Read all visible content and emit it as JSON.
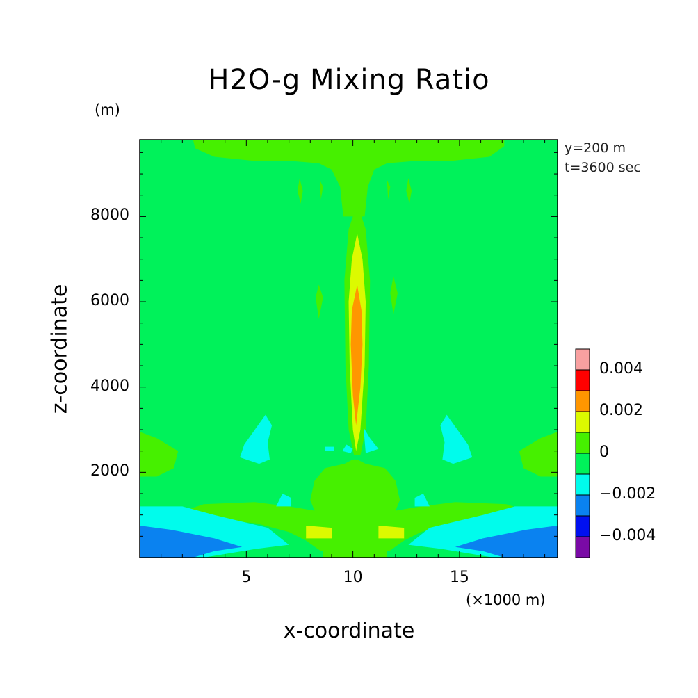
{
  "chart_data": {
    "type": "heatmap",
    "title": "H2O-g Mixing Ratio",
    "xlabel": "x-coordinate",
    "ylabel": "z-coordinate",
    "x_unit": "(×1000 m)",
    "z_unit": "(m)",
    "annotations": [
      "y=200 m",
      "t=3600 sec"
    ],
    "xlim": [
      0,
      19.6
    ],
    "ylim": [
      0,
      9800
    ],
    "x_ticks": [
      {
        "value": 5,
        "label": "5"
      },
      {
        "value": 10,
        "label": "10"
      },
      {
        "value": 15,
        "label": "15"
      }
    ],
    "y_ticks": [
      {
        "value": 2000,
        "label": "2000"
      },
      {
        "value": 4000,
        "label": "4000"
      },
      {
        "value": 6000,
        "label": "6000"
      },
      {
        "value": 8000,
        "label": "8000"
      }
    ],
    "colorbar": {
      "levels": [
        {
          "min": -0.005,
          "max": -0.004,
          "color": "#7a0aa6"
        },
        {
          "min": -0.004,
          "max": -0.003,
          "color": "#0010f0"
        },
        {
          "min": -0.003,
          "max": -0.002,
          "color": "#0a82f0"
        },
        {
          "min": -0.002,
          "max": -0.001,
          "color": "#00fcec"
        },
        {
          "min": -0.001,
          "max": 0.0,
          "color": "#00f25a"
        },
        {
          "min": 0.0,
          "max": 0.001,
          "color": "#46f000"
        },
        {
          "min": 0.001,
          "max": 0.002,
          "color": "#dcfa00"
        },
        {
          "min": 0.002,
          "max": 0.003,
          "color": "#ff9600"
        },
        {
          "min": 0.003,
          "max": 0.004,
          "color": "#ff0000"
        },
        {
          "min": 0.004,
          "max": 0.005,
          "color": "#f8a0a0"
        }
      ],
      "labels": [
        {
          "value": 0.004,
          "label": "0.004"
        },
        {
          "value": 0.002,
          "label": "0.002"
        },
        {
          "value": 0.0,
          "label": "0"
        },
        {
          "value": -0.002,
          "label": "−0.002"
        },
        {
          "value": -0.004,
          "label": "−0.004"
        }
      ]
    },
    "background_color": "#00f25a",
    "regions": [
      {
        "name": "top-band",
        "color": "#46f000",
        "points": [
          [
            2.5,
            9800
          ],
          [
            17.1,
            9800
          ],
          [
            17.1,
            9650
          ],
          [
            16.4,
            9400
          ],
          [
            14.5,
            9300
          ],
          [
            12.8,
            9300
          ],
          [
            11.6,
            9250
          ],
          [
            11.0,
            9100
          ],
          [
            10.7,
            8700
          ],
          [
            10.55,
            8000
          ],
          [
            9.55,
            8000
          ],
          [
            9.4,
            8700
          ],
          [
            9.0,
            9100
          ],
          [
            8.4,
            9250
          ],
          [
            7.2,
            9300
          ],
          [
            5.5,
            9300
          ],
          [
            3.5,
            9400
          ],
          [
            2.6,
            9600
          ]
        ]
      },
      {
        "name": "column-outer",
        "color": "#46f000",
        "points": [
          [
            10.2,
            8300
          ],
          [
            10.6,
            7700
          ],
          [
            10.8,
            6500
          ],
          [
            10.75,
            4500
          ],
          [
            10.6,
            3000
          ],
          [
            10.35,
            2400
          ],
          [
            10.05,
            2400
          ],
          [
            9.8,
            3000
          ],
          [
            9.65,
            4500
          ],
          [
            9.6,
            6500
          ],
          [
            9.8,
            7700
          ]
        ]
      },
      {
        "name": "column-yellow",
        "color": "#dcfa00",
        "points": [
          [
            10.2,
            7600
          ],
          [
            10.45,
            7000
          ],
          [
            10.6,
            6000
          ],
          [
            10.55,
            4500
          ],
          [
            10.35,
            3000
          ],
          [
            10.15,
            2500
          ],
          [
            10.0,
            3000
          ],
          [
            9.85,
            4500
          ],
          [
            9.8,
            6000
          ],
          [
            9.95,
            7000
          ]
        ]
      },
      {
        "name": "column-orange",
        "color": "#ff9600",
        "points": [
          [
            10.2,
            6400
          ],
          [
            10.4,
            5800
          ],
          [
            10.45,
            5000
          ],
          [
            10.35,
            4000
          ],
          [
            10.15,
            3100
          ],
          [
            10.0,
            3800
          ],
          [
            9.9,
            5000
          ],
          [
            9.95,
            5800
          ]
        ]
      },
      {
        "name": "left-mid-blob",
        "color": "#00fcec",
        "points": [
          [
            5.9,
            3350
          ],
          [
            6.2,
            3100
          ],
          [
            6.0,
            2700
          ],
          [
            6.1,
            2300
          ],
          [
            5.6,
            2200
          ],
          [
            4.7,
            2350
          ],
          [
            4.9,
            2650
          ],
          [
            5.4,
            3000
          ]
        ]
      },
      {
        "name": "right-mid-blob",
        "color": "#00fcec",
        "points": [
          [
            14.4,
            3350
          ],
          [
            14.1,
            3100
          ],
          [
            14.3,
            2700
          ],
          [
            14.2,
            2300
          ],
          [
            14.7,
            2200
          ],
          [
            15.6,
            2350
          ],
          [
            15.4,
            2650
          ],
          [
            14.9,
            3000
          ]
        ]
      },
      {
        "name": "left-edge-green",
        "color": "#46f000",
        "points": [
          [
            0,
            2950
          ],
          [
            0.8,
            2800
          ],
          [
            1.8,
            2500
          ],
          [
            1.6,
            2100
          ],
          [
            0.8,
            1900
          ],
          [
            0,
            1900
          ]
        ]
      },
      {
        "name": "right-edge-green",
        "color": "#46f000",
        "points": [
          [
            19.6,
            2950
          ],
          [
            18.8,
            2800
          ],
          [
            17.8,
            2500
          ],
          [
            18.0,
            2100
          ],
          [
            18.8,
            1900
          ],
          [
            19.6,
            1900
          ]
        ]
      },
      {
        "name": "lower-green-body",
        "color": "#46f000",
        "points": [
          [
            10.0,
            2300
          ],
          [
            9.6,
            2200
          ],
          [
            8.7,
            2100
          ],
          [
            8.2,
            1800
          ],
          [
            8.0,
            1350
          ],
          [
            8.2,
            1100
          ],
          [
            7.0,
            1200
          ],
          [
            5.4,
            1300
          ],
          [
            3.0,
            1250
          ],
          [
            2.1,
            1100
          ],
          [
            3.5,
            900
          ],
          [
            5.5,
            800
          ],
          [
            7.0,
            600
          ],
          [
            7.8,
            400
          ],
          [
            8.5,
            150
          ],
          [
            11.7,
            150
          ],
          [
            12.4,
            400
          ],
          [
            13.2,
            600
          ],
          [
            14.7,
            800
          ],
          [
            16.7,
            900
          ],
          [
            18.1,
            1100
          ],
          [
            17.2,
            1250
          ],
          [
            14.8,
            1300
          ],
          [
            13.2,
            1200
          ],
          [
            12.0,
            1100
          ],
          [
            12.2,
            1350
          ],
          [
            12.0,
            1800
          ],
          [
            11.5,
            2100
          ],
          [
            10.6,
            2200
          ],
          [
            10.2,
            2300
          ]
        ]
      },
      {
        "name": "center-lower-blue",
        "color": "#00fcec",
        "points": [
          [
            9.7,
            2650
          ],
          [
            10.0,
            2550
          ],
          [
            9.9,
            2450
          ],
          [
            9.5,
            2500
          ]
        ]
      },
      {
        "name": "center-lower-blue-2",
        "color": "#00fcec",
        "points": [
          [
            10.5,
            3050
          ],
          [
            10.8,
            2800
          ],
          [
            11.2,
            2550
          ],
          [
            10.6,
            2450
          ]
        ]
      },
      {
        "name": "center-lower-blue-3",
        "color": "#00fcec",
        "points": [
          [
            8.7,
            2600
          ],
          [
            9.1,
            2600
          ],
          [
            9.1,
            2500
          ],
          [
            8.7,
            2500
          ]
        ]
      },
      {
        "name": "left-small-blue",
        "color": "#00fcec",
        "points": [
          [
            6.7,
            1500
          ],
          [
            7.1,
            1400
          ],
          [
            7.1,
            1200
          ],
          [
            6.4,
            1200
          ]
        ]
      },
      {
        "name": "right-small-blue",
        "color": "#00fcec",
        "points": [
          [
            13.3,
            1500
          ],
          [
            12.9,
            1400
          ],
          [
            12.9,
            1200
          ],
          [
            13.6,
            1200
          ]
        ]
      },
      {
        "name": "left-low-yellow",
        "color": "#dcfa00",
        "points": [
          [
            7.8,
            750
          ],
          [
            9.0,
            700
          ],
          [
            9.0,
            450
          ],
          [
            7.8,
            450
          ]
        ]
      },
      {
        "name": "right-low-yellow",
        "color": "#dcfa00",
        "points": [
          [
            11.2,
            750
          ],
          [
            12.4,
            700
          ],
          [
            12.4,
            450
          ],
          [
            11.2,
            450
          ]
        ]
      },
      {
        "name": "left-bottom-cyan",
        "color": "#00fcec",
        "points": [
          [
            0,
            1200
          ],
          [
            2.0,
            1200
          ],
          [
            3.5,
            1000
          ],
          [
            6.0,
            700
          ],
          [
            7.0,
            300
          ],
          [
            5.4,
            200
          ],
          [
            3.0,
            0
          ],
          [
            0,
            0
          ]
        ]
      },
      {
        "name": "right-bottom-cyan",
        "color": "#00fcec",
        "points": [
          [
            19.6,
            1200
          ],
          [
            17.6,
            1200
          ],
          [
            16.1,
            1000
          ],
          [
            13.6,
            700
          ],
          [
            12.6,
            300
          ],
          [
            14.2,
            200
          ],
          [
            16.6,
            0
          ],
          [
            19.6,
            0
          ]
        ]
      },
      {
        "name": "left-bottom-blue",
        "color": "#0a82f0",
        "points": [
          [
            0,
            750
          ],
          [
            1.5,
            650
          ],
          [
            3.5,
            450
          ],
          [
            4.8,
            250
          ],
          [
            3.5,
            150
          ],
          [
            2.5,
            0
          ],
          [
            0,
            0
          ]
        ]
      },
      {
        "name": "right-bottom-blue",
        "color": "#0a82f0",
        "points": [
          [
            19.6,
            750
          ],
          [
            18.1,
            650
          ],
          [
            16.1,
            450
          ],
          [
            14.8,
            250
          ],
          [
            16.1,
            150
          ],
          [
            17.1,
            0
          ],
          [
            19.6,
            0
          ]
        ]
      },
      {
        "name": "bottom-center-green",
        "color": "#46f000",
        "points": [
          [
            8.6,
            200
          ],
          [
            11.6,
            200
          ],
          [
            11.6,
            0
          ],
          [
            8.6,
            0
          ]
        ]
      },
      {
        "name": "left-side-spike",
        "color": "#46f000",
        "points": [
          [
            8.4,
            6400
          ],
          [
            8.6,
            6100
          ],
          [
            8.4,
            5600
          ],
          [
            8.25,
            6100
          ]
        ]
      },
      {
        "name": "right-side-spike",
        "color": "#46f000",
        "points": [
          [
            11.9,
            6600
          ],
          [
            12.1,
            6200
          ],
          [
            11.9,
            5700
          ],
          [
            11.75,
            6200
          ]
        ]
      },
      {
        "name": "upper-left-strand",
        "color": "#46f000",
        "points": [
          [
            7.5,
            8900
          ],
          [
            7.65,
            8600
          ],
          [
            7.55,
            8300
          ],
          [
            7.4,
            8600
          ]
        ]
      },
      {
        "name": "upper-left-strand-2",
        "color": "#46f000",
        "points": [
          [
            8.45,
            8850
          ],
          [
            8.6,
            8700
          ],
          [
            8.5,
            8400
          ]
        ]
      },
      {
        "name": "upper-right-strand",
        "color": "#46f000",
        "points": [
          [
            12.6,
            8900
          ],
          [
            12.75,
            8600
          ],
          [
            12.65,
            8300
          ],
          [
            12.5,
            8600
          ]
        ]
      },
      {
        "name": "upper-right-strand-2",
        "color": "#46f000",
        "points": [
          [
            11.6,
            8850
          ],
          [
            11.75,
            8700
          ],
          [
            11.65,
            8400
          ]
        ]
      }
    ]
  }
}
